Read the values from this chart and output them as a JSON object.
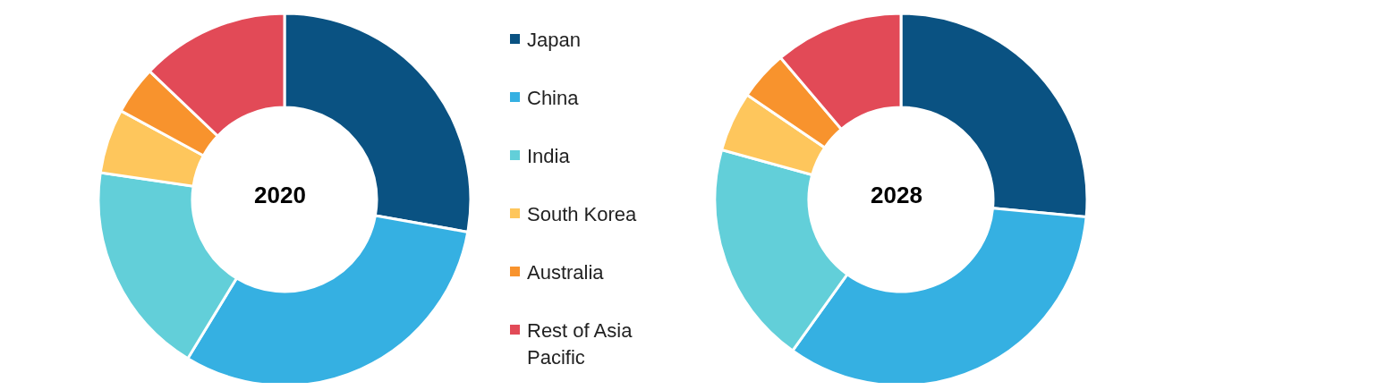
{
  "chart_data": [
    {
      "type": "donut",
      "title": "2020",
      "categories": [
        "Japan",
        "China",
        "India",
        "South Korea",
        "Australia",
        "Rest of Asia Pacific"
      ],
      "values": [
        27.8,
        30.9,
        18.6,
        5.6,
        4.2,
        12.9
      ],
      "colors": [
        "#0a5282",
        "#35b0e2",
        "#62cfd9",
        "#fec65c",
        "#f8932d",
        "#e24a57"
      ],
      "legend": "right"
    },
    {
      "type": "donut",
      "title": "2028",
      "categories": [
        null,
        null,
        null,
        null,
        null,
        null
      ],
      "values": [
        26.5,
        33.4,
        19.4,
        5.2,
        4.3,
        11.2
      ],
      "colors": [
        "#0a5282",
        "#35b0e2",
        "#62cfd9",
        "#fec65c",
        "#f8932d",
        "#e24a57"
      ]
    }
  ]
}
